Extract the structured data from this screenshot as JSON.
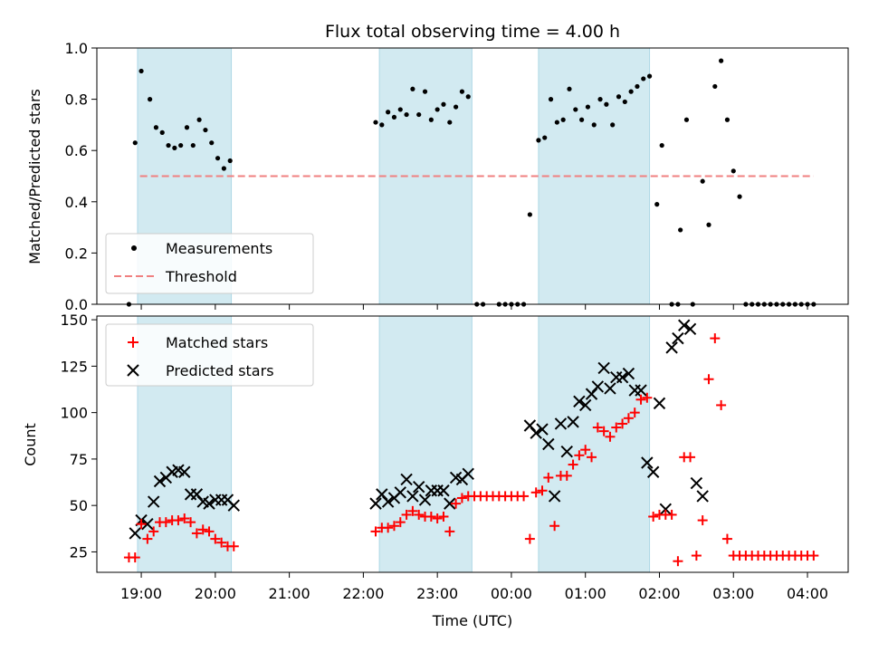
{
  "chart_data": {
    "type": "scatter",
    "title": "Flux total observing time = 4.00 h",
    "xlabel": "Time (UTC)",
    "x_ticks": [
      "19:00",
      "20:00",
      "21:00",
      "22:00",
      "23:00",
      "00:00",
      "01:00",
      "02:00",
      "03:00",
      "04:00"
    ],
    "shaded_intervals": [
      [
        "18:57",
        "20:13"
      ],
      [
        "22:13",
        "23:28"
      ],
      [
        "00:22",
        "01:52"
      ]
    ],
    "colors": {
      "measurements": "#000000",
      "threshold": "#f08080",
      "matched": "#ff0000",
      "predicted": "#000000",
      "shade": "#add8e6"
    },
    "top": {
      "ylabel": "Matched/Predicted stars",
      "ylim": [
        0,
        1
      ],
      "y_ticks": [
        "0.0",
        "0.2",
        "0.4",
        "0.6",
        "0.8",
        "1.0"
      ],
      "threshold": {
        "name": "Threshold",
        "value": 0.5,
        "x": [
          "18:59",
          "04:05"
        ]
      },
      "legend_placement": "lower-left",
      "series": [
        {
          "name": "Measurements",
          "points": [
            [
              "18:50",
              0.0
            ],
            [
              "18:55",
              0.63
            ],
            [
              "19:00",
              0.91
            ],
            [
              "19:07",
              0.8
            ],
            [
              "19:12",
              0.69
            ],
            [
              "19:17",
              0.67
            ],
            [
              "19:22",
              0.62
            ],
            [
              "19:27",
              0.61
            ],
            [
              "19:32",
              0.62
            ],
            [
              "19:37",
              0.69
            ],
            [
              "19:42",
              0.62
            ],
            [
              "19:47",
              0.72
            ],
            [
              "19:52",
              0.68
            ],
            [
              "19:57",
              0.63
            ],
            [
              "20:02",
              0.57
            ],
            [
              "20:07",
              0.53
            ],
            [
              "20:12",
              0.56
            ],
            [
              "22:10",
              0.71
            ],
            [
              "22:15",
              0.7
            ],
            [
              "22:20",
              0.75
            ],
            [
              "22:25",
              0.73
            ],
            [
              "22:30",
              0.76
            ],
            [
              "22:35",
              0.74
            ],
            [
              "22:40",
              0.84
            ],
            [
              "22:45",
              0.74
            ],
            [
              "22:50",
              0.83
            ],
            [
              "22:55",
              0.72
            ],
            [
              "23:00",
              0.76
            ],
            [
              "23:05",
              0.78
            ],
            [
              "23:10",
              0.71
            ],
            [
              "23:15",
              0.77
            ],
            [
              "23:20",
              0.83
            ],
            [
              "23:25",
              0.81
            ],
            [
              "23:32",
              0.0
            ],
            [
              "23:37",
              0.0
            ],
            [
              "23:50",
              0.0
            ],
            [
              "23:55",
              0.0
            ],
            [
              "00:00",
              0.0
            ],
            [
              "00:05",
              0.0
            ],
            [
              "00:10",
              0.0
            ],
            [
              "00:15",
              0.35
            ],
            [
              "00:22",
              0.64
            ],
            [
              "00:27",
              0.65
            ],
            [
              "00:32",
              0.8
            ],
            [
              "00:37",
              0.71
            ],
            [
              "00:42",
              0.72
            ],
            [
              "00:47",
              0.84
            ],
            [
              "00:52",
              0.76
            ],
            [
              "00:57",
              0.72
            ],
            [
              "01:02",
              0.77
            ],
            [
              "01:07",
              0.7
            ],
            [
              "01:12",
              0.8
            ],
            [
              "01:17",
              0.78
            ],
            [
              "01:22",
              0.7
            ],
            [
              "01:27",
              0.81
            ],
            [
              "01:32",
              0.79
            ],
            [
              "01:37",
              0.83
            ],
            [
              "01:42",
              0.85
            ],
            [
              "01:47",
              0.88
            ],
            [
              "01:52",
              0.89
            ],
            [
              "01:58",
              0.39
            ],
            [
              "02:02",
              0.62
            ],
            [
              "02:10",
              0.0
            ],
            [
              "02:15",
              0.0
            ],
            [
              "02:17",
              0.29
            ],
            [
              "02:22",
              0.72
            ],
            [
              "02:27",
              0.0
            ],
            [
              "02:35",
              0.48
            ],
            [
              "02:40",
              0.31
            ],
            [
              "02:45",
              0.85
            ],
            [
              "02:50",
              0.95
            ],
            [
              "02:55",
              0.72
            ],
            [
              "03:00",
              0.52
            ],
            [
              "03:05",
              0.42
            ],
            [
              "03:10",
              0.0
            ],
            [
              "03:15",
              0.0
            ],
            [
              "03:20",
              0.0
            ],
            [
              "03:25",
              0.0
            ],
            [
              "03:30",
              0.0
            ],
            [
              "03:35",
              0.0
            ],
            [
              "03:40",
              0.0
            ],
            [
              "03:45",
              0.0
            ],
            [
              "03:50",
              0.0
            ],
            [
              "03:55",
              0.0
            ],
            [
              "04:00",
              0.0
            ],
            [
              "04:05",
              0.0
            ]
          ]
        }
      ]
    },
    "bottom": {
      "ylabel": "Count",
      "ylim": [
        14,
        152
      ],
      "y_ticks": [
        25,
        50,
        75,
        100,
        125,
        150
      ],
      "legend_placement": "upper-left",
      "series": [
        {
          "name": "Matched stars",
          "points": [
            [
              "18:50",
              22
            ],
            [
              "18:55",
              22
            ],
            [
              "19:00",
              40
            ],
            [
              "19:05",
              32
            ],
            [
              "19:10",
              36
            ],
            [
              "19:15",
              41
            ],
            [
              "19:20",
              41
            ],
            [
              "19:25",
              42
            ],
            [
              "19:30",
              42
            ],
            [
              "19:35",
              43
            ],
            [
              "19:40",
              41
            ],
            [
              "19:45",
              35
            ],
            [
              "19:50",
              37
            ],
            [
              "19:55",
              36
            ],
            [
              "20:00",
              32
            ],
            [
              "20:05",
              30
            ],
            [
              "20:10",
              28
            ],
            [
              "20:15",
              28
            ],
            [
              "22:10",
              36
            ],
            [
              "22:15",
              38
            ],
            [
              "22:20",
              38
            ],
            [
              "22:25",
              39
            ],
            [
              "22:30",
              41
            ],
            [
              "22:35",
              45
            ],
            [
              "22:40",
              47
            ],
            [
              "22:45",
              45
            ],
            [
              "22:50",
              44
            ],
            [
              "22:55",
              44
            ],
            [
              "23:00",
              43
            ],
            [
              "23:05",
              44
            ],
            [
              "23:10",
              36
            ],
            [
              "23:15",
              51
            ],
            [
              "23:20",
              54
            ],
            [
              "23:25",
              55
            ],
            [
              "23:30",
              55
            ],
            [
              "23:35",
              55
            ],
            [
              "23:40",
              55
            ],
            [
              "23:45",
              55
            ],
            [
              "23:50",
              55
            ],
            [
              "23:55",
              55
            ],
            [
              "00:00",
              55
            ],
            [
              "00:05",
              55
            ],
            [
              "00:10",
              55
            ],
            [
              "00:15",
              32
            ],
            [
              "00:20",
              57
            ],
            [
              "00:25",
              58
            ],
            [
              "00:30",
              65
            ],
            [
              "00:35",
              39
            ],
            [
              "00:40",
              66
            ],
            [
              "00:45",
              66
            ],
            [
              "00:50",
              72
            ],
            [
              "00:55",
              77
            ],
            [
              "01:00",
              80
            ],
            [
              "01:05",
              76
            ],
            [
              "01:10",
              92
            ],
            [
              "01:15",
              90
            ],
            [
              "01:20",
              87
            ],
            [
              "01:25",
              92
            ],
            [
              "01:30",
              94
            ],
            [
              "01:35",
              97
            ],
            [
              "01:40",
              100
            ],
            [
              "01:45",
              107
            ],
            [
              "01:50",
              108
            ],
            [
              "01:55",
              44
            ],
            [
              "02:00",
              45
            ],
            [
              "02:05",
              45
            ],
            [
              "02:10",
              45
            ],
            [
              "02:15",
              20
            ],
            [
              "02:20",
              76
            ],
            [
              "02:25",
              76
            ],
            [
              "02:30",
              23
            ],
            [
              "02:35",
              42
            ],
            [
              "02:40",
              118
            ],
            [
              "02:45",
              140
            ],
            [
              "02:50",
              104
            ],
            [
              "02:55",
              32
            ],
            [
              "03:00",
              23
            ],
            [
              "03:05",
              23
            ],
            [
              "03:10",
              23
            ],
            [
              "03:15",
              23
            ],
            [
              "03:20",
              23
            ],
            [
              "03:25",
              23
            ],
            [
              "03:30",
              23
            ],
            [
              "03:35",
              23
            ],
            [
              "03:40",
              23
            ],
            [
              "03:45",
              23
            ],
            [
              "03:50",
              23
            ],
            [
              "03:55",
              23
            ],
            [
              "04:00",
              23
            ],
            [
              "04:05",
              23
            ]
          ]
        },
        {
          "name": "Predicted stars",
          "points": [
            [
              "18:55",
              35
            ],
            [
              "19:00",
              42
            ],
            [
              "19:05",
              40
            ],
            [
              "19:10",
              52
            ],
            [
              "19:15",
              63
            ],
            [
              "19:20",
              65
            ],
            [
              "19:25",
              68
            ],
            [
              "19:30",
              69
            ],
            [
              "19:35",
              68
            ],
            [
              "19:40",
              56
            ],
            [
              "19:45",
              56
            ],
            [
              "19:50",
              52
            ],
            [
              "19:55",
              51
            ],
            [
              "20:00",
              53
            ],
            [
              "20:05",
              53
            ],
            [
              "20:10",
              53
            ],
            [
              "20:15",
              50
            ],
            [
              "22:10",
              51
            ],
            [
              "22:15",
              56
            ],
            [
              "22:20",
              52
            ],
            [
              "22:25",
              54
            ],
            [
              "22:30",
              57
            ],
            [
              "22:35",
              64
            ],
            [
              "22:40",
              55
            ],
            [
              "22:45",
              60
            ],
            [
              "22:50",
              53
            ],
            [
              "22:55",
              58
            ],
            [
              "23:00",
              58
            ],
            [
              "23:05",
              58
            ],
            [
              "23:10",
              51
            ],
            [
              "23:15",
              65
            ],
            [
              "23:20",
              64
            ],
            [
              "23:25",
              67
            ],
            [
              "00:15",
              93
            ],
            [
              "00:20",
              89
            ],
            [
              "00:25",
              91
            ],
            [
              "00:30",
              83
            ],
            [
              "00:35",
              55
            ],
            [
              "00:40",
              94
            ],
            [
              "00:45",
              79
            ],
            [
              "00:50",
              95
            ],
            [
              "00:55",
              106
            ],
            [
              "01:00",
              104
            ],
            [
              "01:05",
              110
            ],
            [
              "01:10",
              114
            ],
            [
              "01:15",
              124
            ],
            [
              "01:20",
              113
            ],
            [
              "01:25",
              119
            ],
            [
              "01:30",
              119
            ],
            [
              "01:35",
              121
            ],
            [
              "01:40",
              112
            ],
            [
              "01:45",
              112
            ],
            [
              "01:50",
              73
            ],
            [
              "01:55",
              68
            ],
            [
              "02:00",
              105
            ],
            [
              "02:05",
              48
            ],
            [
              "02:10",
              135
            ],
            [
              "02:15",
              140
            ],
            [
              "02:20",
              147
            ],
            [
              "02:25",
              145
            ],
            [
              "02:30",
              62
            ],
            [
              "02:35",
              55
            ]
          ]
        }
      ]
    }
  }
}
